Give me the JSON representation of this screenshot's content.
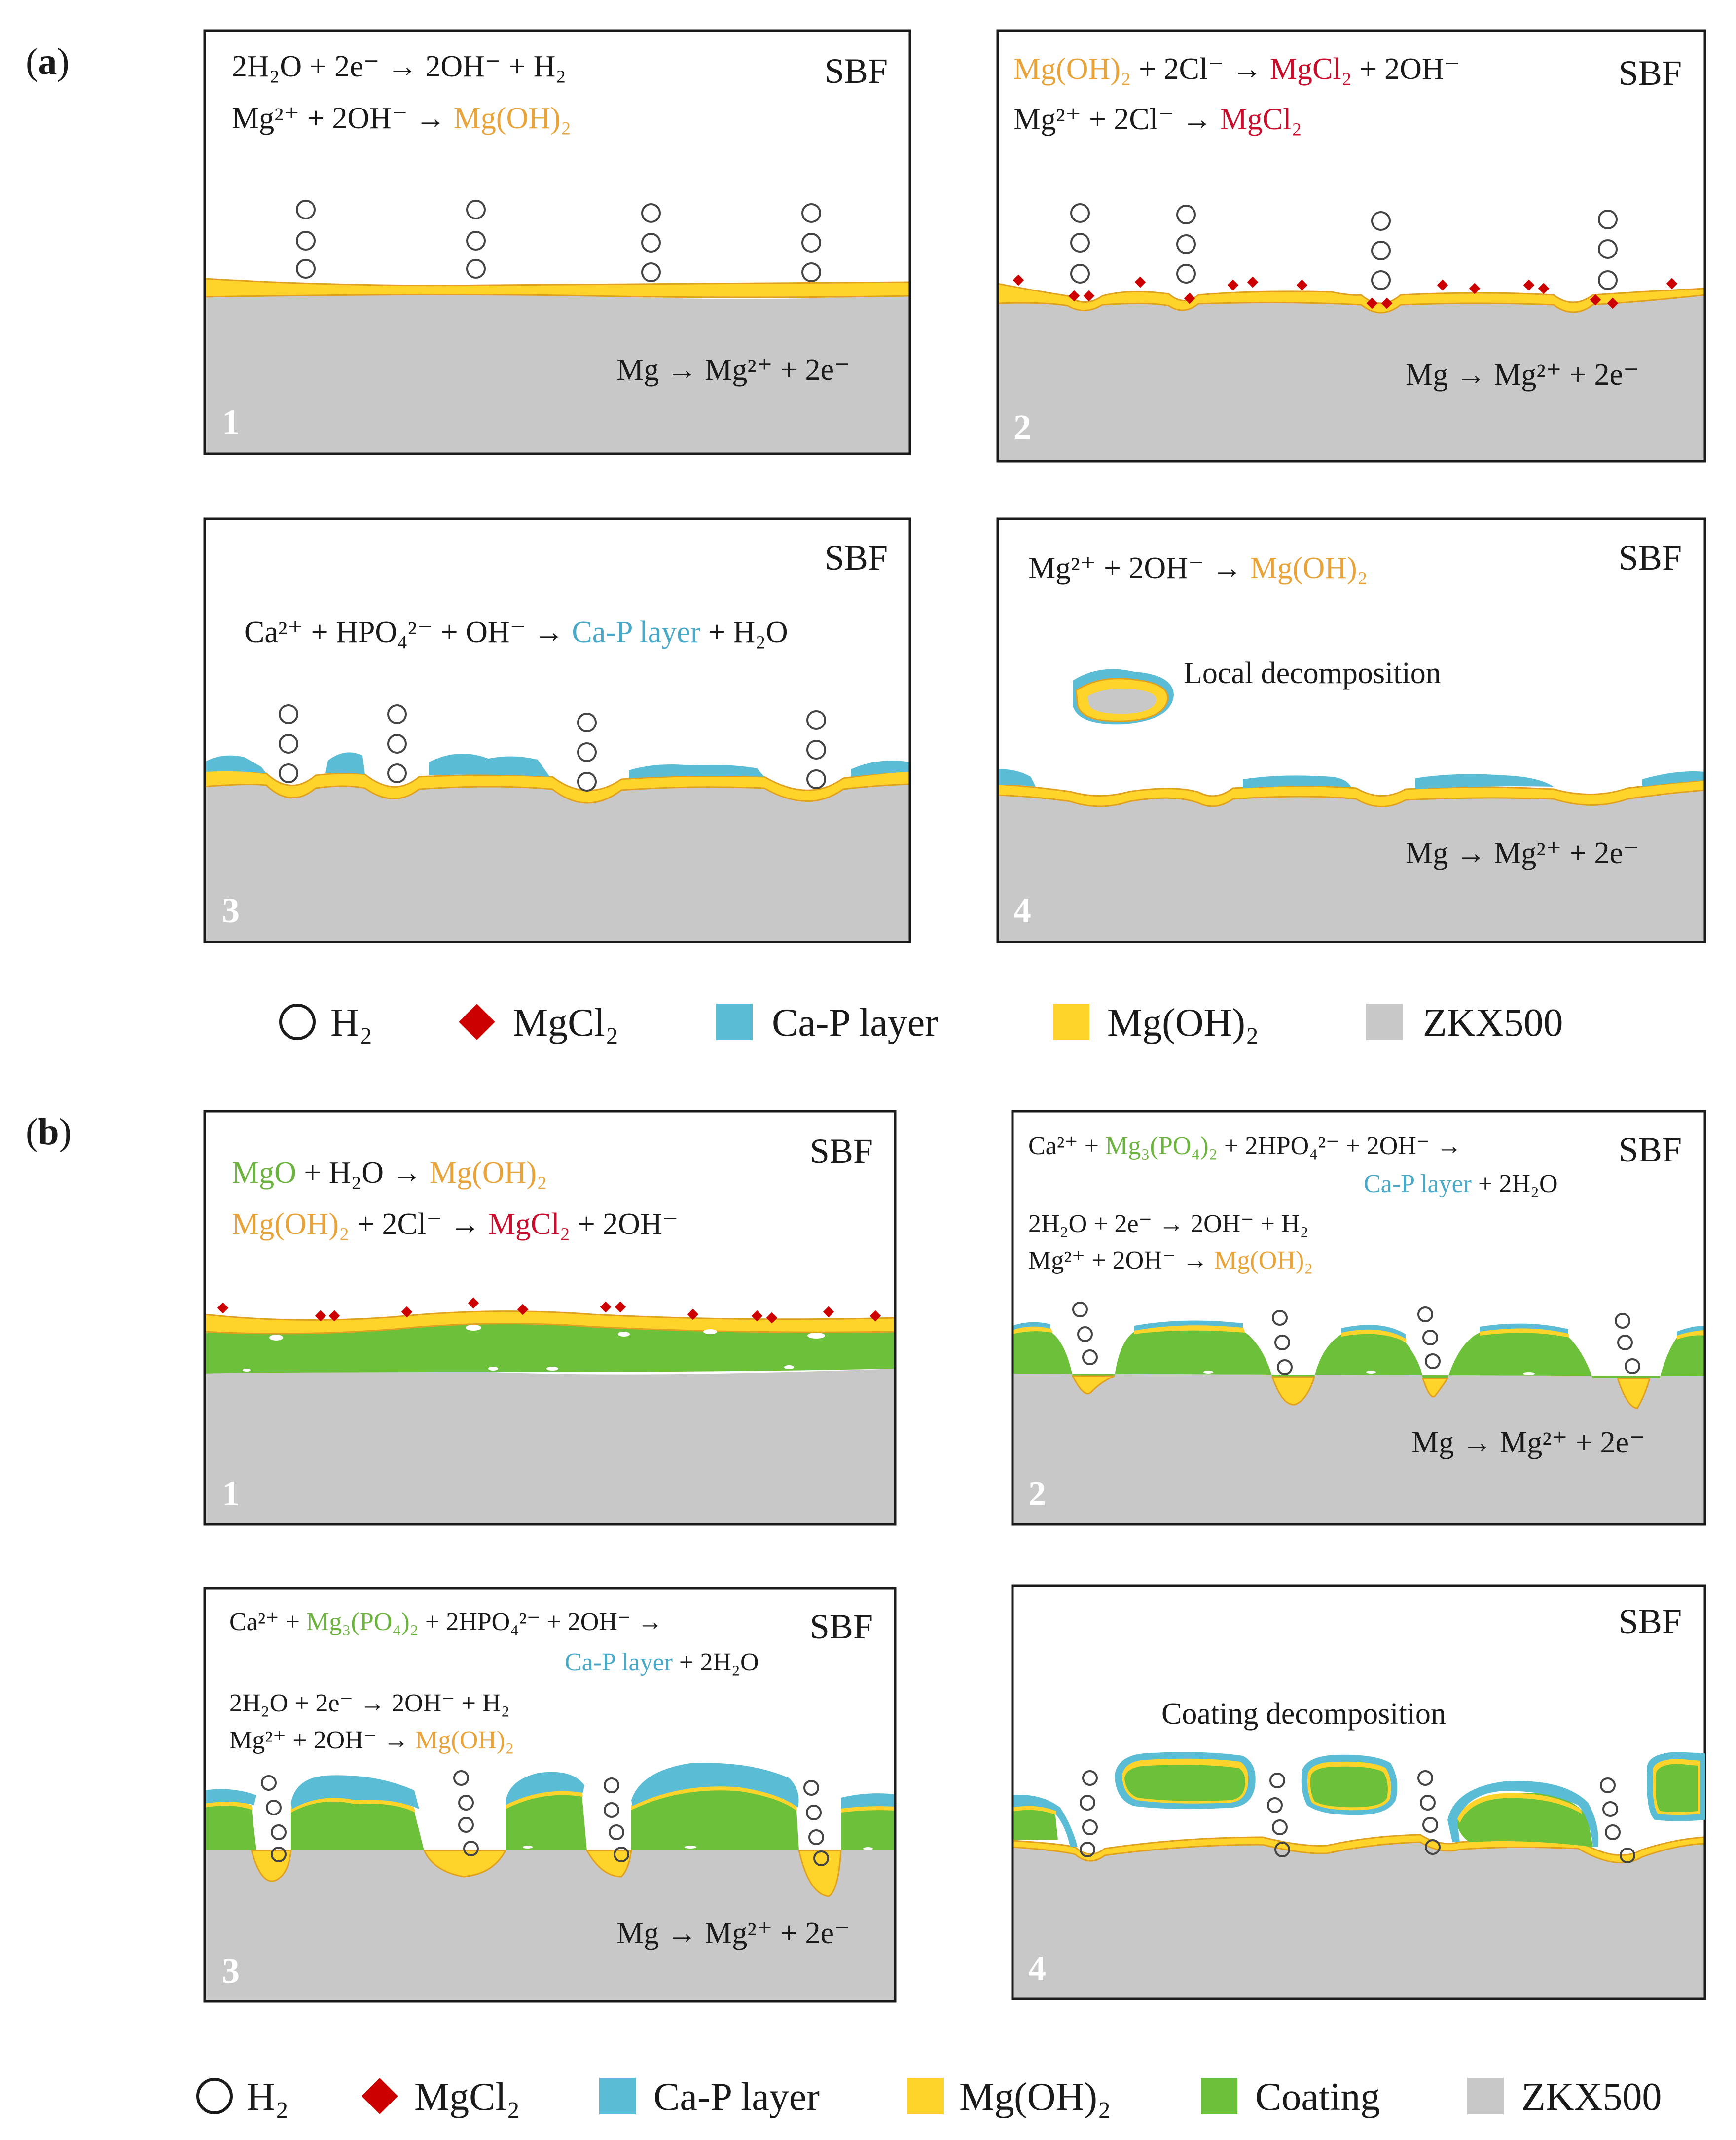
{
  "colors": {
    "substrate": "#c8c8c8",
    "mgoh2": "#ffd42a",
    "mgoh2_edge": "#e0a020",
    "cap": "#5bbcd6",
    "coating": "#6cc03a",
    "mgcl2": "#cc0000",
    "text": "#1a1a1a",
    "orange_text": "#e8a33a",
    "red_text": "#c8102e",
    "blue_text": "#4aa8c8",
    "green_text": "#6cb43f",
    "panel_number": "#ffffff"
  },
  "part_labels": {
    "a": "(a)",
    "b": "(b)",
    "a_letter": "a",
    "b_letter": "b"
  },
  "common": {
    "medium": "SBF"
  },
  "panels_a": [
    {
      "number": "1",
      "eq1": "2H₂O + 2e⁻ → 2OH⁻ + H₂",
      "eq2_left": "Mg²⁺ + 2OH⁻ → ",
      "eq2_product": "Mg(OH)₂",
      "bottom_eq": "Mg → Mg²⁺ + 2e⁻"
    },
    {
      "number": "2",
      "eq1_reactant": "Mg(OH)₂",
      "eq1_mid": " + 2Cl⁻ → ",
      "eq1_product": "MgCl₂",
      "eq1_tail": " + 2OH⁻",
      "eq2_left": "Mg²⁺ + 2Cl⁻ → ",
      "eq2_product": "MgCl₂",
      "bottom_eq": "Mg → Mg²⁺ + 2e⁻"
    },
    {
      "number": "3",
      "eq1_left": "Ca²⁺ + HPO₄²⁻ + OH⁻ → ",
      "eq1_product": "Ca-P layer",
      "eq1_tail": " + H₂O"
    },
    {
      "number": "4",
      "eq1_left": "Mg²⁺ + 2OH⁻ → ",
      "eq1_product": "Mg(OH)₂",
      "annotation": "Local decomposition",
      "bottom_eq": "Mg → Mg²⁺ + 2e⁻"
    }
  ],
  "panels_b": [
    {
      "number": "1",
      "eq1_reactant": "MgO",
      "eq1_mid": " + H₂O → ",
      "eq1_product": "Mg(OH)₂",
      "eq2_reactant": "Mg(OH)₂",
      "eq2_mid": " + 2Cl⁻ → ",
      "eq2_product": "MgCl₂",
      "eq2_tail": " + 2OH⁻"
    },
    {
      "number": "2",
      "eq1_left": "Ca²⁺ + ",
      "eq1_green": "Mg₃(PO₄)₂",
      "eq1_tail": " + 2HPO₄²⁻ + 2OH⁻ →",
      "eq1_product": "Ca-P layer",
      "eq1_product_tail": " + 2H₂O",
      "eq2": "2H₂O + 2e⁻ → 2OH⁻ + H₂",
      "eq3_left": "Mg²⁺ + 2OH⁻ → ",
      "eq3_product": "Mg(OH)₂",
      "bottom_eq": "Mg → Mg²⁺ + 2e⁻"
    },
    {
      "number": "3",
      "eq1_left": "Ca²⁺ + ",
      "eq1_green": "Mg₃(PO₄)₂",
      "eq1_tail": " + 2HPO₄²⁻ + 2OH⁻ →",
      "eq1_product": "Ca-P layer",
      "eq1_product_tail": " + 2H₂O",
      "eq2": "2H₂O + 2e⁻ → 2OH⁻ + H₂",
      "eq3_left": "Mg²⁺ + 2OH⁻ → ",
      "eq3_product": "Mg(OH)₂",
      "bottom_eq": "Mg → Mg²⁺ + 2e⁻"
    },
    {
      "number": "4",
      "annotation": "Coating decomposition"
    }
  ],
  "legend_a": {
    "h2": "H₂",
    "mgcl2": "MgCl₂",
    "cap": "Ca-P layer",
    "mgoh2": "Mg(OH)₂",
    "substrate": "ZKX500"
  },
  "legend_b": {
    "h2": "H₂",
    "mgcl2": "MgCl₂",
    "cap": "Ca-P layer",
    "mgoh2": "Mg(OH)₂",
    "coating": "Coating",
    "substrate": "ZKX500"
  }
}
